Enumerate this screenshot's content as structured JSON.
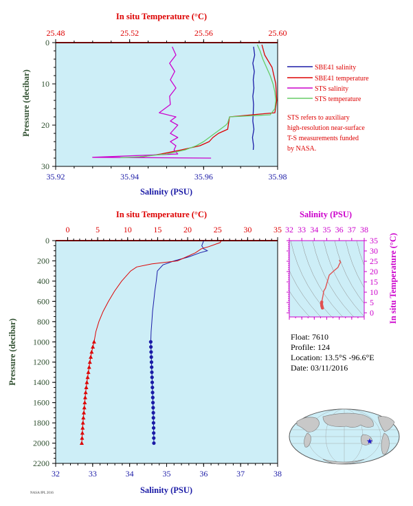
{
  "colors": {
    "red": "#dd0000",
    "blue": "#1a1aa6",
    "magenta": "#cc00cc",
    "green": "#66cc66",
    "dark_green": "#2f4f2f",
    "plot_bg": "#cdeef7",
    "ts_bg": "#cdeef7"
  },
  "float_info": {
    "float": "Float:  7610",
    "profile": "Profile:  124",
    "location": "Location:  13.5°S  -96.6°E",
    "date": "Date:  03/11/2016"
  },
  "footer_text": "NASA/JPL 2016",
  "chart_data": [
    {
      "type": "line",
      "id": "near_surface",
      "top_axis_label": "In situ Temperature (°C)",
      "top_ticks": [
        "25.48",
        "25.52",
        "25.56",
        "25.60"
      ],
      "top_tick_values": [
        25.48,
        25.52,
        25.56,
        25.6
      ],
      "temp_range": [
        25.48,
        25.6
      ],
      "xlabel": "Salinity (PSU)",
      "x_ticks": [
        "35.92",
        "35.94",
        "35.96",
        "35.98"
      ],
      "x_tick_values": [
        35.92,
        35.94,
        35.96,
        35.98
      ],
      "sal_range": [
        35.92,
        35.98
      ],
      "ylabel": "Pressure (decibar)",
      "y_ticks": [
        "0",
        "10",
        "20",
        "30"
      ],
      "y_tick_values": [
        0,
        10,
        20,
        30
      ],
      "ylim": [
        0,
        30
      ],
      "legend": [
        {
          "name": "SBE41 salinity",
          "color": "blue"
        },
        {
          "name": "SBE41 temperature",
          "color": "red"
        },
        {
          "name": "STS salinity",
          "color": "magenta"
        },
        {
          "name": "STS temperature",
          "color": "green"
        }
      ],
      "note": [
        "STS refers to auxiliary",
        "high-resolution near-surface",
        "T-S measurements funded",
        "by NASA."
      ],
      "series": [
        {
          "name": "SBE41 salinity",
          "color": "blue",
          "axis": "salinity",
          "points": [
            [
              35.9735,
              1
            ],
            [
              35.9738,
              3
            ],
            [
              35.9733,
              5
            ],
            [
              35.9737,
              7
            ],
            [
              35.9734,
              9
            ],
            [
              35.9736,
              11
            ],
            [
              35.9733,
              13
            ],
            [
              35.9735,
              15
            ],
            [
              35.9734,
              17
            ],
            [
              35.9733,
              19
            ],
            [
              35.9736,
              21
            ],
            [
              35.9732,
              23
            ],
            [
              35.9735,
              25
            ],
            [
              35.9734,
              26
            ]
          ]
        },
        {
          "name": "SBE41 temperature",
          "color": "red",
          "axis": "temperature",
          "points": [
            [
              25.5915,
              0.5
            ],
            [
              25.593,
              3
            ],
            [
              25.597,
              6
            ],
            [
              25.599,
              10
            ],
            [
              25.5995,
              14
            ],
            [
              25.5985,
              17
            ],
            [
              25.574,
              18
            ],
            [
              25.573,
              21
            ],
            [
              25.568,
              22
            ],
            [
              25.565,
              23
            ],
            [
              25.563,
              24
            ],
            [
              25.558,
              25
            ],
            [
              25.548,
              26
            ],
            [
              25.537,
              27
            ],
            [
              25.528,
              27.6
            ],
            [
              25.522,
              27.8
            ]
          ]
        },
        {
          "name": "STS salinity",
          "color": "magenta",
          "axis": "salinity",
          "points": [
            [
              35.9515,
              1
            ],
            [
              35.9525,
              3
            ],
            [
              35.9508,
              5
            ],
            [
              35.9522,
              7
            ],
            [
              35.951,
              9
            ],
            [
              35.9525,
              11
            ],
            [
              35.9508,
              13
            ],
            [
              35.951,
              15
            ],
            [
              35.948,
              17
            ],
            [
              35.9525,
              18
            ],
            [
              35.951,
              19
            ],
            [
              35.953,
              20
            ],
            [
              35.952,
              21
            ],
            [
              35.951,
              22
            ],
            [
              35.953,
              23
            ],
            [
              35.951,
              24
            ],
            [
              35.9525,
              25
            ],
            [
              35.952,
              26
            ],
            [
              35.953,
              27
            ],
            [
              35.93,
              27.8
            ],
            [
              35.962,
              28
            ]
          ]
        },
        {
          "name": "STS temperature",
          "color": "green",
          "axis": "temperature",
          "points": [
            [
              25.589,
              0.5
            ],
            [
              25.5905,
              2
            ],
            [
              25.592,
              4
            ],
            [
              25.594,
              6
            ],
            [
              25.596,
              8
            ],
            [
              25.5975,
              10
            ],
            [
              25.5985,
              12
            ],
            [
              25.599,
              14
            ],
            [
              25.5985,
              16
            ],
            [
              25.596,
              17.5
            ],
            [
              25.574,
              18
            ],
            [
              25.573,
              19.5
            ],
            [
              25.572,
              20
            ],
            [
              25.569,
              21
            ],
            [
              25.566,
              22
            ],
            [
              25.563,
              23
            ],
            [
              25.56,
              24
            ],
            [
              25.556,
              25
            ],
            [
              25.55,
              26
            ],
            [
              25.54,
              27
            ],
            [
              25.525,
              27.7
            ],
            [
              25.515,
              27.9
            ]
          ]
        }
      ]
    },
    {
      "type": "line",
      "id": "full_profile",
      "top_axis_label": "In situ Temperature (°C)",
      "top_ticks": [
        "0",
        "5",
        "10",
        "15",
        "20",
        "25",
        "30",
        "35"
      ],
      "top_tick_values": [
        0,
        5,
        10,
        15,
        20,
        25,
        30,
        35
      ],
      "temp_range": [
        -2,
        35
      ],
      "xlabel": "Salinity (PSU)",
      "x_ticks": [
        "32",
        "33",
        "34",
        "35",
        "36",
        "37",
        "38"
      ],
      "x_tick_values": [
        32,
        33,
        34,
        35,
        36,
        37,
        38
      ],
      "sal_range": [
        32,
        38
      ],
      "ylabel": "Pressure (decibar)",
      "y_ticks": [
        "0",
        "200",
        "400",
        "600",
        "800",
        "1000",
        "1200",
        "1400",
        "1600",
        "1800",
        "2000",
        "2200"
      ],
      "y_tick_values": [
        0,
        200,
        400,
        600,
        800,
        1000,
        1200,
        1400,
        1600,
        1800,
        2000,
        2200
      ],
      "ylim": [
        0,
        2200
      ],
      "series": [
        {
          "name": "salinity",
          "color": "blue",
          "axis": "salinity",
          "points": [
            [
              36.0,
              2
            ],
            [
              35.95,
              50
            ],
            [
              36.0,
              80
            ],
            [
              36.1,
              100
            ],
            [
              35.9,
              120
            ],
            [
              35.6,
              160
            ],
            [
              35.2,
              200
            ],
            [
              34.9,
              240
            ],
            [
              34.75,
              300
            ],
            [
              34.72,
              400
            ],
            [
              34.68,
              500
            ],
            [
              34.65,
              600
            ],
            [
              34.62,
              700
            ],
            [
              34.6,
              800
            ],
            [
              34.58,
              900
            ],
            [
              34.57,
              1000
            ],
            [
              34.58,
              1100
            ],
            [
              34.59,
              1200
            ],
            [
              34.6,
              1300
            ],
            [
              34.61,
              1400
            ],
            [
              34.62,
              1500
            ],
            [
              34.63,
              1600
            ],
            [
              34.64,
              1700
            ],
            [
              34.645,
              1800
            ],
            [
              34.65,
              1900
            ],
            [
              34.655,
              2000
            ]
          ]
        },
        {
          "name": "temperature",
          "color": "red",
          "axis": "temperature",
          "points": [
            [
              25.6,
              2
            ],
            [
              25.4,
              20
            ],
            [
              23.5,
              60
            ],
            [
              22.3,
              80
            ],
            [
              21.3,
              120
            ],
            [
              18.3,
              200
            ],
            [
              14.0,
              230
            ],
            [
              11.5,
              260
            ],
            [
              10.5,
              300
            ],
            [
              9.0,
              400
            ],
            [
              7.8,
              500
            ],
            [
              6.8,
              600
            ],
            [
              5.9,
              700
            ],
            [
              5.2,
              800
            ],
            [
              4.7,
              900
            ],
            [
              4.4,
              1000
            ],
            [
              4.0,
              1100
            ],
            [
              3.7,
              1200
            ],
            [
              3.45,
              1300
            ],
            [
              3.2,
              1400
            ],
            [
              3.0,
              1500
            ],
            [
              2.85,
              1600
            ],
            [
              2.7,
              1700
            ],
            [
              2.55,
              1800
            ],
            [
              2.45,
              1900
            ],
            [
              2.35,
              2000
            ]
          ]
        }
      ],
      "markers": {
        "pressures": [
          1000,
          1050,
          1100,
          1150,
          1200,
          1250,
          1300,
          1350,
          1400,
          1450,
          1500,
          1550,
          1600,
          1650,
          1700,
          1750,
          1800,
          1850,
          1900,
          1950,
          2000
        ],
        "salinity": [
          34.57,
          34.575,
          34.58,
          34.585,
          34.59,
          34.595,
          34.6,
          34.605,
          34.61,
          34.615,
          34.62,
          34.625,
          34.63,
          34.635,
          34.64,
          34.642,
          34.645,
          34.648,
          34.65,
          34.652,
          34.655
        ],
        "temperature": [
          4.4,
          4.2,
          4.0,
          3.85,
          3.7,
          3.58,
          3.45,
          3.33,
          3.2,
          3.1,
          3.0,
          2.92,
          2.85,
          2.78,
          2.7,
          2.62,
          2.55,
          2.5,
          2.45,
          2.4,
          2.35
        ]
      }
    },
    {
      "type": "scatter",
      "id": "ts_diagram",
      "top_axis_label": "Salinity (PSU)",
      "top_ticks": [
        "32",
        "33",
        "34",
        "35",
        "36",
        "37",
        "38"
      ],
      "top_tick_values": [
        32,
        33,
        34,
        35,
        36,
        37,
        38
      ],
      "sal_range": [
        32,
        38
      ],
      "right_axis_label": "In situ Temperature (°C)",
      "right_ticks": [
        "0",
        "5",
        "10",
        "15",
        "20",
        "25",
        "30",
        "35"
      ],
      "right_tick_values": [
        0,
        5,
        10,
        15,
        20,
        25,
        30,
        35
      ],
      "temp_range": [
        -2,
        35
      ],
      "points": [
        [
          34.655,
          2.35
        ],
        [
          34.62,
          3.0
        ],
        [
          34.6,
          3.6
        ],
        [
          34.58,
          4.4
        ],
        [
          34.6,
          5.2
        ],
        [
          34.65,
          6.8
        ],
        [
          34.72,
          9.0
        ],
        [
          34.75,
          10.5
        ],
        [
          34.9,
          12.0
        ],
        [
          35.2,
          18.3
        ],
        [
          35.6,
          20.5
        ],
        [
          35.9,
          22.0
        ],
        [
          36.0,
          23.5
        ],
        [
          36.1,
          24.5
        ],
        [
          36.0,
          25.6
        ]
      ]
    }
  ]
}
